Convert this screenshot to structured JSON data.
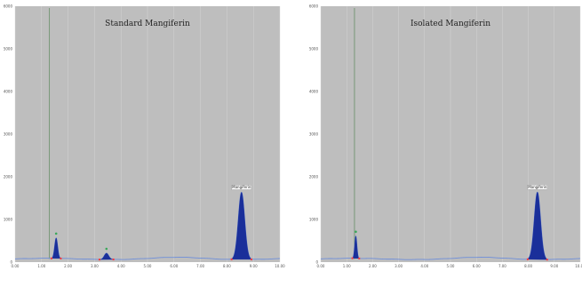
{
  "chart_data": [
    {
      "type": "line",
      "title": "Standard Mangiferin",
      "xlabel": "",
      "ylabel": "",
      "xlim": [
        0,
        10
      ],
      "ylim": [
        -5,
        6000
      ],
      "y_ticks": [
        "0",
        "1000",
        "2000",
        "3000",
        "4000",
        "5000",
        "6000"
      ],
      "x_ticks": [
        "0.00",
        "1.00",
        "2.00",
        "3.00",
        "4.00",
        "5.00",
        "6.00",
        "7.00",
        "8.00",
        "9.00",
        "10.00"
      ],
      "colors": {
        "background": "#bebebe",
        "trace": "#6f8fd9",
        "peak_fill": "#1a2f9a",
        "marker": "#ff3a3a",
        "vline": "#4a7f4a"
      },
      "baseline_value": 70,
      "injection_marker_x": 1.3,
      "peaks": [
        {
          "x": 1.55,
          "height": 480,
          "width": 0.08,
          "label": ""
        },
        {
          "x": 3.45,
          "height": 150,
          "width": 0.12,
          "label": ""
        },
        {
          "x": 8.55,
          "height": 1580,
          "width": 0.17,
          "label": "Mangiferin"
        }
      ]
    },
    {
      "type": "line",
      "title": "Isolated Mangiferin",
      "xlabel": "",
      "ylabel": "",
      "xlim": [
        0,
        10
      ],
      "ylim": [
        -5,
        6000
      ],
      "y_ticks": [
        "0",
        "1000",
        "2000",
        "3000",
        "4000",
        "5000",
        "6000"
      ],
      "x_ticks": [
        "0.00",
        "1.00",
        "2.00",
        "3.00",
        "4.00",
        "5.00",
        "6.00",
        "7.00",
        "8.00",
        "9.00",
        "10.00"
      ],
      "colors": {
        "background": "#bebebe",
        "trace": "#6f8fd9",
        "peak_fill": "#1a2f9a",
        "marker": "#ff3a3a",
        "vline": "#4a7f4a"
      },
      "baseline_value": 70,
      "injection_marker_x": 1.3,
      "peaks": [
        {
          "x": 1.35,
          "height": 520,
          "width": 0.06,
          "label": ""
        },
        {
          "x": 8.35,
          "height": 1580,
          "width": 0.17,
          "label": "Mangiferin"
        }
      ]
    }
  ]
}
